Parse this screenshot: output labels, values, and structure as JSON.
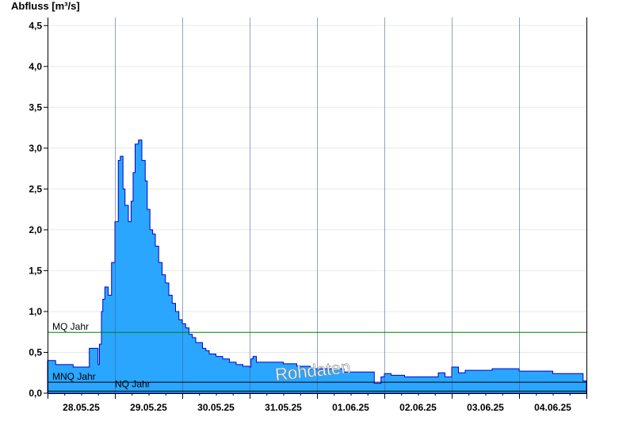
{
  "chart_data": {
    "type": "area",
    "ylabel": "Abfluss [m³/s]",
    "ylim": [
      0,
      4.6
    ],
    "yticks": [
      0,
      0.5,
      1.0,
      1.5,
      2.0,
      2.5,
      3.0,
      3.5,
      4.0,
      4.5
    ],
    "ytick_labels": [
      "0,0",
      "0,5",
      "1,0",
      "1,5",
      "2,0",
      "2,5",
      "3,0",
      "3,5",
      "4,0",
      "4,5"
    ],
    "xlim": [
      0,
      8
    ],
    "x_unit": "days since 28.05.25 00:00",
    "xtick_labels": [
      "28.05.25",
      "29.05.25",
      "30.05.25",
      "31.05.25",
      "01.06.25",
      "02.06.25",
      "03.06.25",
      "04.06.25"
    ],
    "grid": true,
    "colors": {
      "area_fill": "#2aa6ff",
      "area_line": "#0000cc",
      "mq_line": "#008000",
      "ref_line": "#000000"
    },
    "series": [
      {
        "x": [
          0.0,
          0.1,
          0.12,
          0.35,
          0.38,
          0.6,
          0.62,
          0.75,
          0.77,
          0.8,
          0.82,
          0.85,
          0.9,
          0.95,
          1.0,
          1.05,
          1.08,
          1.12,
          1.15,
          1.2,
          1.24,
          1.27,
          1.3,
          1.35,
          1.4,
          1.45,
          1.48,
          1.52,
          1.56,
          1.6,
          1.65,
          1.7,
          1.75,
          1.8,
          1.85,
          1.9,
          1.95,
          2.0,
          2.05,
          2.1,
          2.15,
          2.2,
          2.3,
          2.35,
          2.4,
          2.5,
          2.6,
          2.7,
          2.8,
          2.9,
          3.0,
          3.02,
          3.05,
          3.1,
          3.3,
          3.5,
          3.7,
          3.9,
          4.0,
          4.2,
          4.4,
          4.6,
          4.8,
          4.85,
          4.95,
          5.0,
          5.1,
          5.3,
          5.6,
          5.8,
          5.9,
          6.0,
          6.1,
          6.2,
          6.3,
          6.5,
          6.6,
          6.7,
          6.8,
          7.0,
          7.2,
          7.4,
          7.5,
          7.7,
          7.9,
          7.95,
          8.0
        ],
        "values": [
          0.4,
          0.4,
          0.35,
          0.35,
          0.32,
          0.32,
          0.55,
          0.35,
          0.6,
          1.0,
          1.15,
          1.3,
          1.2,
          1.6,
          2.1,
          2.85,
          2.9,
          2.5,
          2.3,
          2.1,
          2.35,
          2.7,
          3.05,
          3.1,
          2.85,
          2.6,
          2.25,
          2.0,
          1.95,
          1.8,
          1.6,
          1.45,
          1.35,
          1.2,
          1.1,
          1.0,
          0.9,
          0.85,
          0.8,
          0.72,
          0.68,
          0.62,
          0.55,
          0.52,
          0.48,
          0.45,
          0.42,
          0.38,
          0.35,
          0.33,
          0.32,
          0.42,
          0.45,
          0.38,
          0.38,
          0.36,
          0.33,
          0.3,
          0.3,
          0.3,
          0.26,
          0.26,
          0.26,
          0.12,
          0.2,
          0.24,
          0.22,
          0.2,
          0.2,
          0.25,
          0.2,
          0.32,
          0.25,
          0.28,
          0.28,
          0.28,
          0.3,
          0.3,
          0.3,
          0.27,
          0.27,
          0.27,
          0.24,
          0.24,
          0.24,
          0.15,
          0.15
        ]
      }
    ],
    "reference_lines": [
      {
        "label": "MQ Jahr",
        "value": 0.75
      },
      {
        "label": "MNQ Jahr",
        "value": 0.14
      },
      {
        "label": "NQ Jahr",
        "value": 0.03
      }
    ],
    "watermark": "Rohdaten"
  }
}
